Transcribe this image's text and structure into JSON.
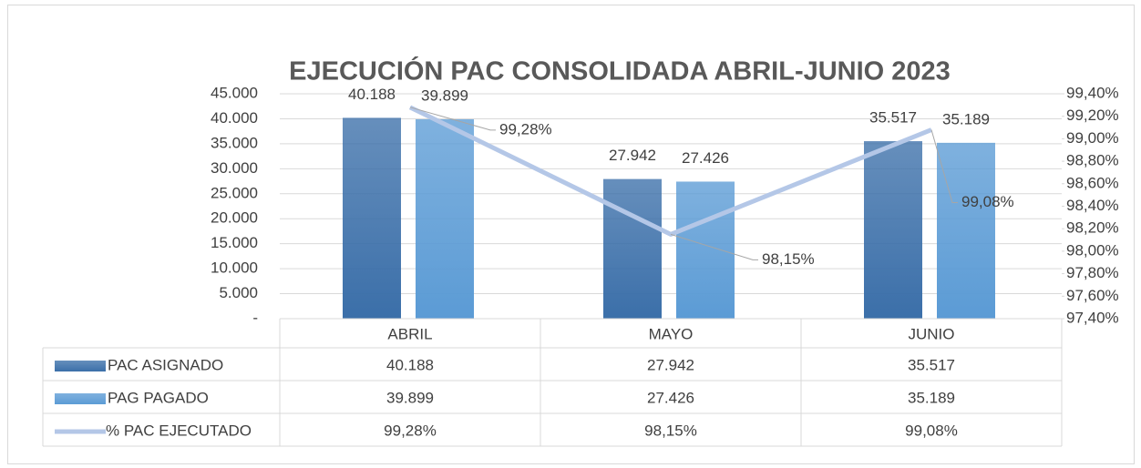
{
  "chart_data": {
    "type": "bar-line",
    "title": "EJECUCIÓN PAC CONSOLIDADA ABRIL-JUNIO 2023",
    "categories": [
      "ABRIL",
      "MAYO",
      "JUNIO"
    ],
    "series": [
      {
        "name": "PAC ASIGNADO",
        "type": "bar",
        "color": "#3b6fa9",
        "values": [
          40188,
          27942,
          35517
        ],
        "value_labels": [
          "40.188",
          "27.942",
          "35.517"
        ]
      },
      {
        "name": "PAG PAGADO",
        "type": "bar",
        "color": "#5b9bd5",
        "values": [
          39899,
          27426,
          35189
        ],
        "value_labels": [
          "39.899",
          "27.426",
          "35.189"
        ]
      },
      {
        "name": "% PAC EJECUTADO",
        "type": "line",
        "axis": "y2",
        "color": "#b4c7e7",
        "values": [
          99.28,
          98.15,
          99.08
        ],
        "value_labels": [
          "99,28%",
          "98,15%",
          "99,08%"
        ]
      }
    ],
    "ylim": [
      0,
      45000
    ],
    "yticks": [
      {
        "value": 0,
        "label": "-"
      },
      {
        "value": 5000,
        "label": "5.000"
      },
      {
        "value": 10000,
        "label": "10.000"
      },
      {
        "value": 15000,
        "label": "15.000"
      },
      {
        "value": 20000,
        "label": "20.000"
      },
      {
        "value": 25000,
        "label": "25.000"
      },
      {
        "value": 30000,
        "label": "30.000"
      },
      {
        "value": 35000,
        "label": "35.000"
      },
      {
        "value": 40000,
        "label": "40.000"
      },
      {
        "value": 45000,
        "label": "45.000"
      }
    ],
    "y2lim": [
      97.4,
      99.4
    ],
    "y2ticks": [
      {
        "value": 97.4,
        "label": "97,40%"
      },
      {
        "value": 97.6,
        "label": "97,60%"
      },
      {
        "value": 97.8,
        "label": "97,80%"
      },
      {
        "value": 98.0,
        "label": "98,00%"
      },
      {
        "value": 98.2,
        "label": "98,20%"
      },
      {
        "value": 98.4,
        "label": "98,40%"
      },
      {
        "value": 98.6,
        "label": "98,60%"
      },
      {
        "value": 98.8,
        "label": "98,80%"
      },
      {
        "value": 99.0,
        "label": "99,00%"
      },
      {
        "value": 99.2,
        "label": "99,20%"
      },
      {
        "value": 99.4,
        "label": "99,40%"
      }
    ],
    "grid": true
  }
}
